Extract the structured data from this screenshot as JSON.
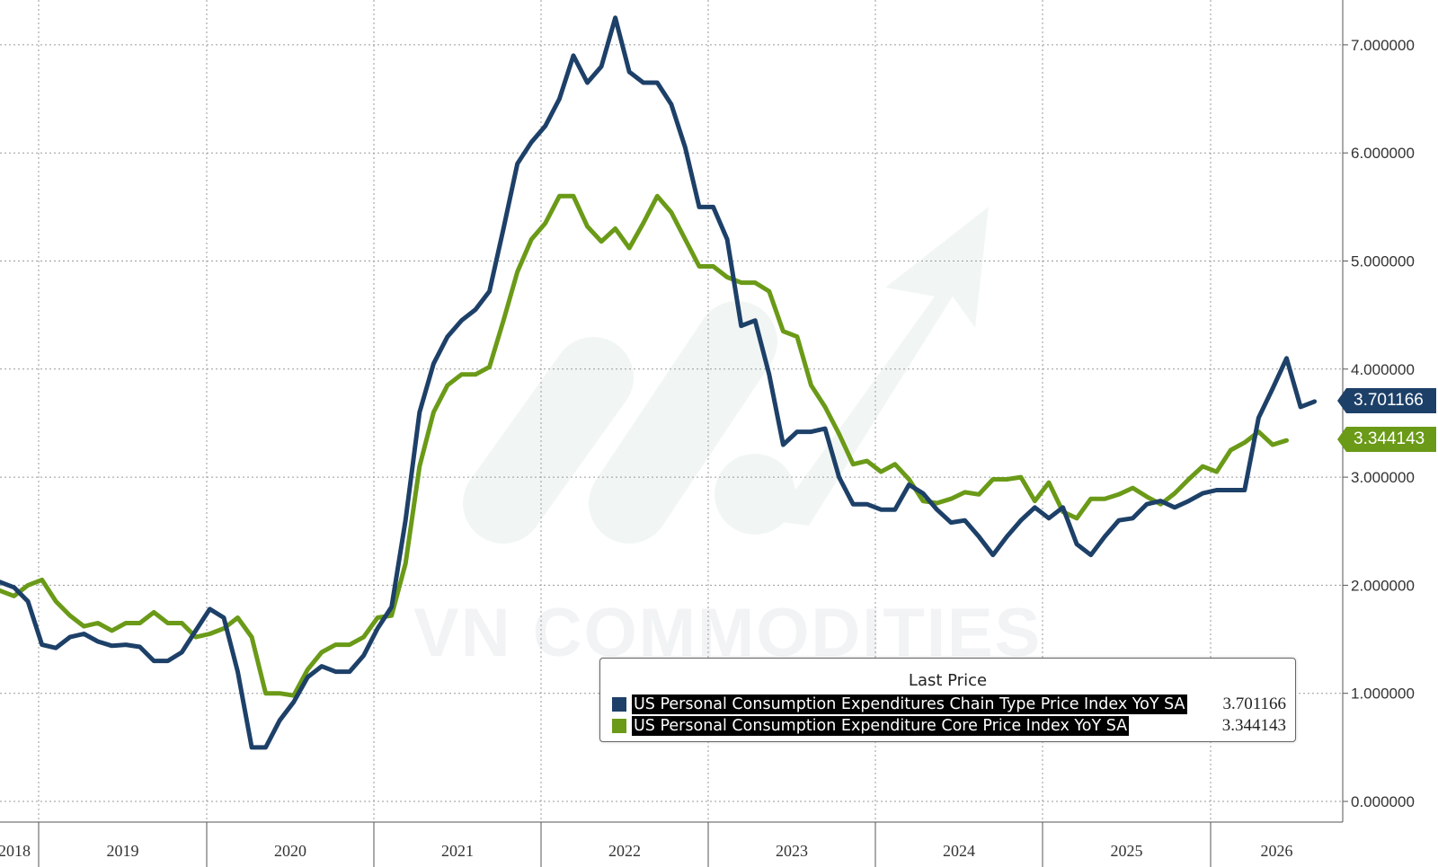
{
  "chart_data": {
    "type": "line",
    "x_start": "2018-05",
    "x_ticks": [
      "2018",
      "2019",
      "2020",
      "2021",
      "2022",
      "2023",
      "2024",
      "2025",
      "2026"
    ],
    "ylim": [
      0,
      7.5
    ],
    "y_ticks": [
      "0.000000",
      "1.000000",
      "2.000000",
      "3.000000",
      "4.000000",
      "5.000000",
      "6.000000",
      "7.000000"
    ],
    "grid": true,
    "legend_title": "Last Price",
    "legend_position": "bottom-right",
    "series": [
      {
        "name": "US Personal Consumption Expenditures Chain Type Price Index YoY SA",
        "color": "#1d4068",
        "last_value_label": "3.701166",
        "values": [
          2.03,
          1.98,
          1.85,
          1.45,
          1.42,
          1.52,
          1.55,
          1.48,
          1.44,
          1.45,
          1.43,
          1.3,
          1.3,
          1.38,
          1.58,
          1.78,
          1.7,
          1.2,
          0.5,
          0.5,
          0.75,
          0.92,
          1.15,
          1.25,
          1.2,
          1.2,
          1.35,
          1.6,
          1.8,
          2.6,
          3.6,
          4.05,
          4.3,
          4.45,
          4.55,
          4.72,
          5.3,
          5.9,
          6.1,
          6.25,
          6.5,
          6.9,
          6.65,
          6.8,
          7.25,
          6.75,
          6.65,
          6.65,
          6.45,
          6.05,
          5.5,
          5.5,
          5.2,
          4.4,
          4.45,
          3.95,
          3.3,
          3.42,
          3.42,
          3.45,
          3.0,
          2.75,
          2.75,
          2.7,
          2.7,
          2.93,
          2.85,
          2.7,
          2.58,
          2.6,
          2.45,
          2.28,
          2.45,
          2.6,
          2.72,
          2.62,
          2.72,
          2.38,
          2.28,
          2.45,
          2.6,
          2.62,
          2.75,
          2.78,
          2.72,
          2.78,
          2.85,
          2.88,
          2.88,
          2.88,
          3.55,
          3.82,
          4.1,
          3.65,
          3.7
        ]
      },
      {
        "name": "US Personal Consumption Expenditure Core Price Index YoY SA",
        "color": "#6a9a17",
        "last_value_label": "3.344143",
        "values": [
          1.95,
          1.9,
          2.0,
          2.05,
          1.85,
          1.72,
          1.62,
          1.65,
          1.58,
          1.65,
          1.65,
          1.75,
          1.65,
          1.65,
          1.52,
          1.55,
          1.6,
          1.7,
          1.52,
          1.0,
          1.0,
          0.98,
          1.22,
          1.38,
          1.45,
          1.45,
          1.52,
          1.7,
          1.72,
          2.2,
          3.1,
          3.6,
          3.85,
          3.95,
          3.95,
          4.02,
          4.45,
          4.9,
          5.2,
          5.35,
          5.6,
          5.6,
          5.32,
          5.18,
          5.3,
          5.12,
          5.35,
          5.6,
          5.45,
          5.2,
          4.95,
          4.95,
          4.85,
          4.8,
          4.8,
          4.72,
          4.35,
          4.3,
          3.85,
          3.65,
          3.4,
          3.12,
          3.15,
          3.05,
          3.12,
          2.98,
          2.78,
          2.76,
          2.8,
          2.86,
          2.84,
          2.98,
          2.98,
          3.0,
          2.78,
          2.95,
          2.68,
          2.62,
          2.8,
          2.8,
          2.84,
          2.9,
          2.82,
          2.75,
          2.85,
          2.98,
          3.1,
          3.05,
          3.25,
          3.32,
          3.42,
          3.3,
          3.34
        ]
      }
    ]
  }
}
